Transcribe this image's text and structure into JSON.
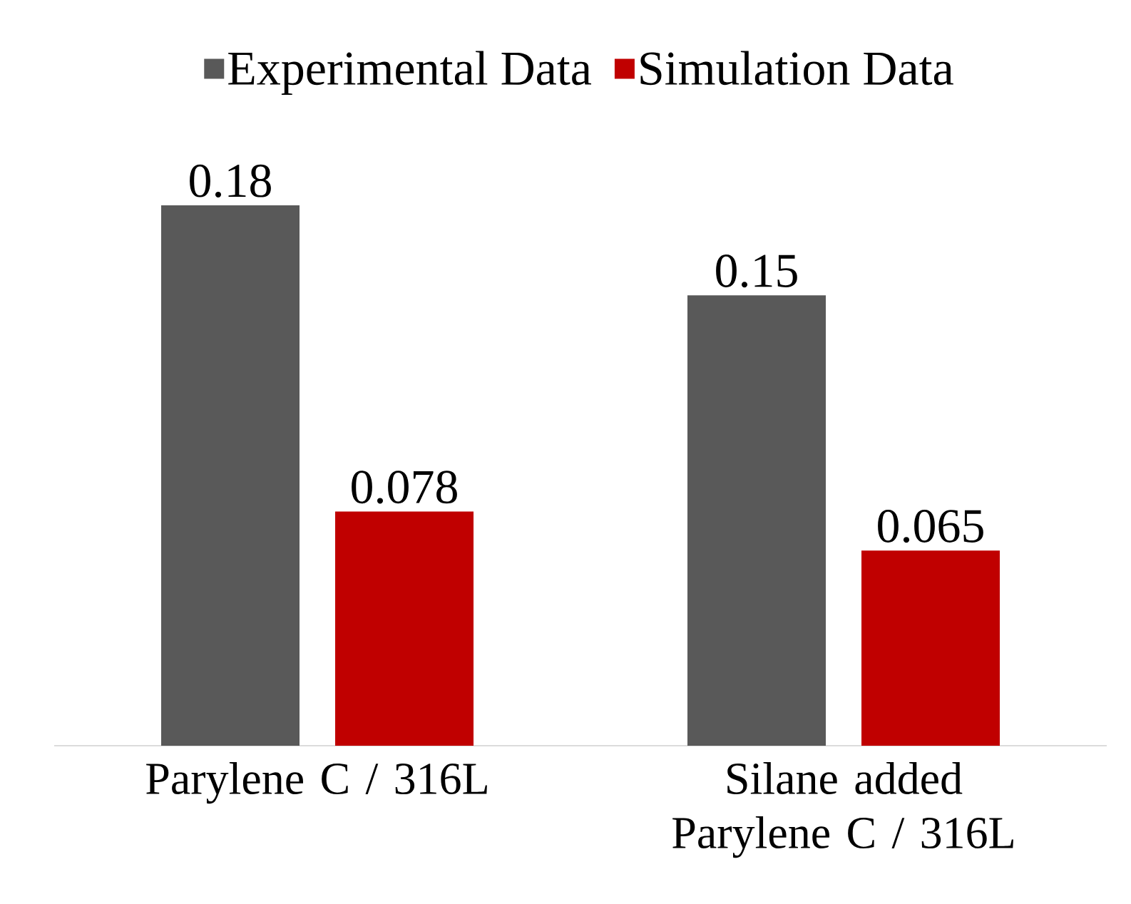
{
  "chart_data": {
    "type": "bar",
    "tick_labels": "x",
    "data_labels": true,
    "legend": "top",
    "categories": [
      "Parylene C / 316L",
      "Silane added Parylene C / 316L"
    ],
    "series": [
      {
        "name": "Experimental Data",
        "color": "#595959",
        "values": [
          0.18,
          0.15
        ]
      },
      {
        "name": "Simulation Data",
        "color": "#c00000",
        "values": [
          0.078,
          0.065
        ]
      }
    ]
  }
}
